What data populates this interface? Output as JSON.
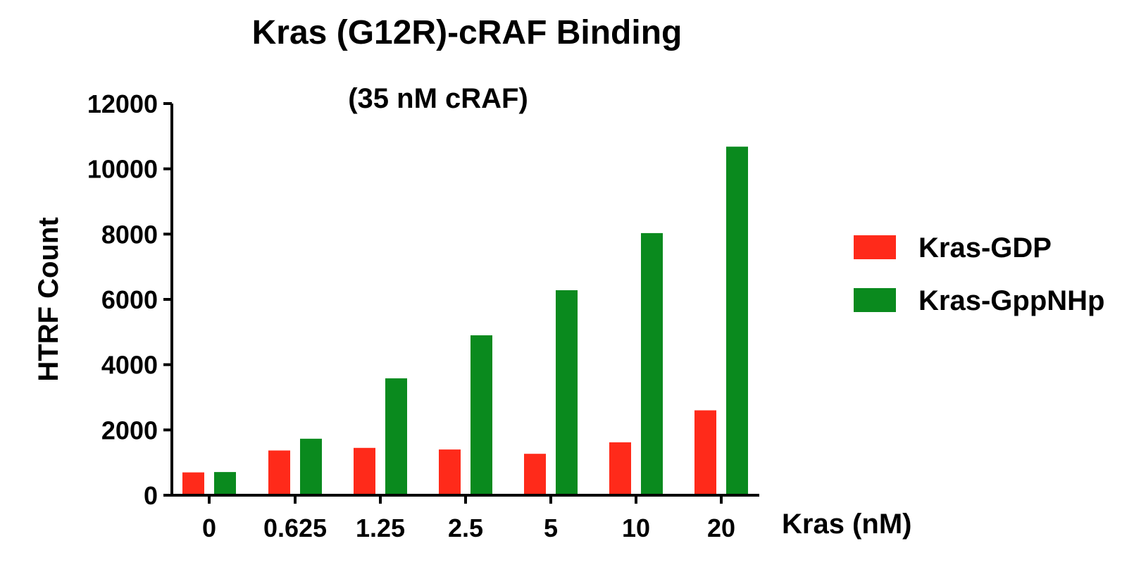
{
  "chart_data": {
    "type": "bar",
    "title": "Kras (G12R)-cRAF Binding",
    "subtitle": "(35 nM cRAF)",
    "xlabel": "Kras (nM)",
    "ylabel": "HTRF Count",
    "categories": [
      "0",
      "0.625",
      "1.25",
      "2.5",
      "5",
      "10",
      "20"
    ],
    "ylim": [
      0,
      12000
    ],
    "yticks": [
      0,
      2000,
      4000,
      6000,
      8000,
      10000,
      12000
    ],
    "grid": false,
    "legend_position": "right",
    "series": [
      {
        "name": "Kras-GDP",
        "color": "#ff2a1a",
        "values": [
          700,
          1370,
          1450,
          1400,
          1270,
          1620,
          2600
        ]
      },
      {
        "name": "Kras-GppNHp",
        "color": "#0a8a1e",
        "values": [
          710,
          1730,
          3580,
          4900,
          6280,
          8030,
          10680
        ]
      }
    ]
  }
}
